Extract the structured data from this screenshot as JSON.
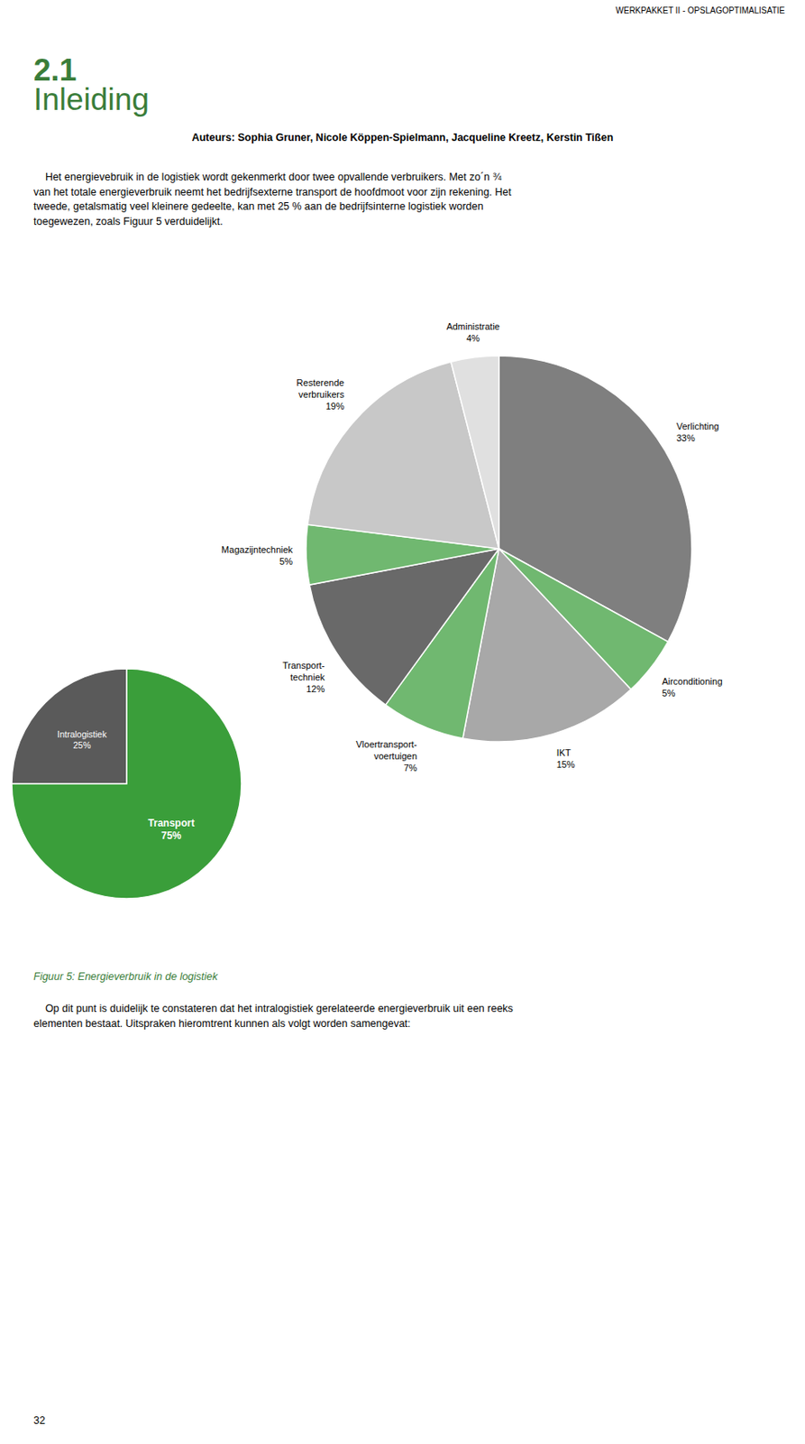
{
  "page": {
    "header": "WERKPAKKET II - OPSLAGOPTIMALISATIE",
    "title_number": "2.1",
    "title_text": "Inleiding",
    "title_color": "#3a7d3a",
    "authors": "Auteurs: Sophia Gruner, Nicole Köppen-Spielmann, Jacqueline Kreetz, Kerstin Tißen",
    "body": [
      "    Het energievebruik in de logistiek wordt gekenmerkt door twee opvallende verbruikers. Met zo´n ¾",
      "van het totale energieverbruik neemt het bedrijfsexterne transport de hoofdmoot voor zijn rekening. Het",
      "tweede, getalsmatig veel kleinere gedeelte, kan met 25 % aan de bedrijfsinterne logistiek worden",
      "toegewezen, zoals Figuur 5 verduidelijkt."
    ],
    "figure_caption": "Figuur 5: Energieverbruik in de logistiek",
    "caption_color": "#3a7d3a",
    "footer": [
      "    Op dit punt is duidelijk te constateren dat het intralogistiek gerelateerde energieverbruik uit een reeks",
      "elementen bestaat. Uitspraken hieromtrent kunnen als volgt worden samengevat:"
    ],
    "page_number": "32"
  },
  "chart_data": [
    {
      "type": "pie",
      "categories": [
        "Verlichting",
        "Airconditioning",
        "IKT",
        "Vloertransport-\nvoertuigen",
        "Transport-\ntechniek",
        "Magazijntechniek",
        "Resterende\nverbruikers",
        "Administratie"
      ],
      "values": [
        33,
        5,
        15,
        7,
        12,
        5,
        19,
        4
      ],
      "value_labels": [
        "33%",
        "5%",
        "15%",
        "7%",
        "12%",
        "5%",
        "19%",
        "4%"
      ],
      "colors": [
        "#7f7f7f",
        "#70b870",
        "#a8a8a8",
        "#70b870",
        "#696969",
        "#70b870",
        "#c8c8c8",
        "#e0e0e0"
      ],
      "data_labels": true
    },
    {
      "type": "pie",
      "categories": [
        "Transport",
        "Intralogistiek"
      ],
      "values": [
        75,
        25
      ],
      "value_labels": [
        "75%",
        "25%"
      ],
      "colors": [
        "#3a9e3a",
        "#5a5a5a"
      ],
      "data_labels": true
    }
  ]
}
